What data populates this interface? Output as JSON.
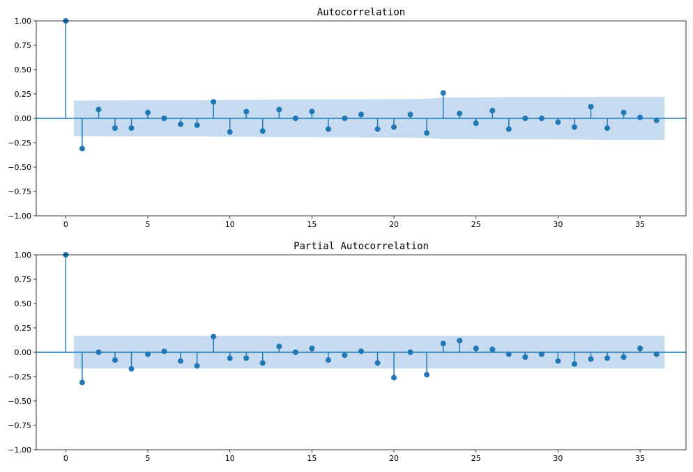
{
  "colors": {
    "stem": "#1f77b4",
    "band": "#c6dbef",
    "axis": "#000000",
    "background": "#ffffff"
  },
  "chart_data": [
    {
      "type": "stem",
      "title": "Autocorrelation",
      "xlabel": "",
      "ylabel": "",
      "xlim": [
        -1.8,
        37.8
      ],
      "ylim": [
        -1.0,
        1.0
      ],
      "xticks": [
        0,
        5,
        10,
        15,
        20,
        25,
        30,
        35
      ],
      "yticks": [
        1.0,
        0.75,
        0.5,
        0.25,
        0.0,
        -0.25,
        -0.5,
        -0.75,
        -1.0
      ],
      "ytick_labels": [
        "1.00",
        "0.75",
        "0.50",
        "0.25",
        "0.00",
        "−0.25",
        "−0.50",
        "−0.75",
        "−1.00"
      ],
      "grid": false,
      "lags": [
        0,
        1,
        2,
        3,
        4,
        5,
        6,
        7,
        8,
        9,
        10,
        11,
        12,
        13,
        14,
        15,
        16,
        17,
        18,
        19,
        20,
        21,
        22,
        23,
        24,
        25,
        26,
        27,
        28,
        29,
        30,
        31,
        32,
        33,
        34,
        35,
        36
      ],
      "values": [
        1.0,
        -0.31,
        0.09,
        -0.1,
        -0.1,
        0.06,
        0.0,
        -0.06,
        -0.07,
        0.17,
        -0.14,
        0.07,
        -0.13,
        0.09,
        0.0,
        0.07,
        -0.11,
        0.0,
        0.04,
        -0.11,
        -0.09,
        0.04,
        -0.15,
        0.26,
        0.05,
        -0.05,
        0.08,
        -0.11,
        0.0,
        0.0,
        -0.04,
        -0.09,
        0.12,
        -0.1,
        0.06,
        0.01,
        -0.02
      ],
      "confidence_band": [
        0.167,
        0.182,
        0.184,
        0.184,
        0.185,
        0.185,
        0.185,
        0.186,
        0.186,
        0.188,
        0.19,
        0.19,
        0.192,
        0.193,
        0.193,
        0.193,
        0.195,
        0.195,
        0.195,
        0.197,
        0.198,
        0.198,
        0.201,
        0.215,
        0.215,
        0.215,
        0.216,
        0.217,
        0.217,
        0.217,
        0.217,
        0.218,
        0.22,
        0.221,
        0.221,
        0.221,
        0.221
      ]
    },
    {
      "type": "stem",
      "title": "Partial Autocorrelation",
      "xlabel": "",
      "ylabel": "",
      "xlim": [
        -1.8,
        37.8
      ],
      "ylim": [
        -1.0,
        1.0
      ],
      "xticks": [
        0,
        5,
        10,
        15,
        20,
        25,
        30,
        35
      ],
      "yticks": [
        1.0,
        0.75,
        0.5,
        0.25,
        0.0,
        -0.25,
        -0.5,
        -0.75,
        -1.0
      ],
      "ytick_labels": [
        "1.00",
        "0.75",
        "0.50",
        "0.25",
        "0.00",
        "−0.25",
        "−0.50",
        "−0.75",
        "−1.00"
      ],
      "grid": false,
      "lags": [
        0,
        1,
        2,
        3,
        4,
        5,
        6,
        7,
        8,
        9,
        10,
        11,
        12,
        13,
        14,
        15,
        16,
        17,
        18,
        19,
        20,
        21,
        22,
        23,
        24,
        25,
        26,
        27,
        28,
        29,
        30,
        31,
        32,
        33,
        34,
        35,
        36
      ],
      "values": [
        1.0,
        -0.31,
        0.0,
        -0.08,
        -0.17,
        -0.02,
        0.01,
        -0.09,
        -0.14,
        0.16,
        -0.06,
        -0.06,
        -0.11,
        0.06,
        0.0,
        0.04,
        -0.08,
        -0.03,
        0.01,
        -0.11,
        -0.26,
        0.0,
        -0.23,
        0.09,
        0.12,
        0.04,
        0.03,
        -0.02,
        -0.05,
        -0.02,
        -0.09,
        -0.12,
        -0.07,
        -0.06,
        -0.05,
        0.04,
        -0.02
      ],
      "confidence_band": [
        0.167,
        0.167,
        0.167,
        0.167,
        0.167,
        0.167,
        0.167,
        0.167,
        0.167,
        0.167,
        0.167,
        0.167,
        0.167,
        0.167,
        0.167,
        0.167,
        0.167,
        0.167,
        0.167,
        0.167,
        0.167,
        0.167,
        0.167,
        0.167,
        0.167,
        0.167,
        0.167,
        0.167,
        0.167,
        0.167,
        0.167,
        0.167,
        0.167,
        0.167,
        0.167,
        0.167,
        0.167
      ]
    }
  ]
}
